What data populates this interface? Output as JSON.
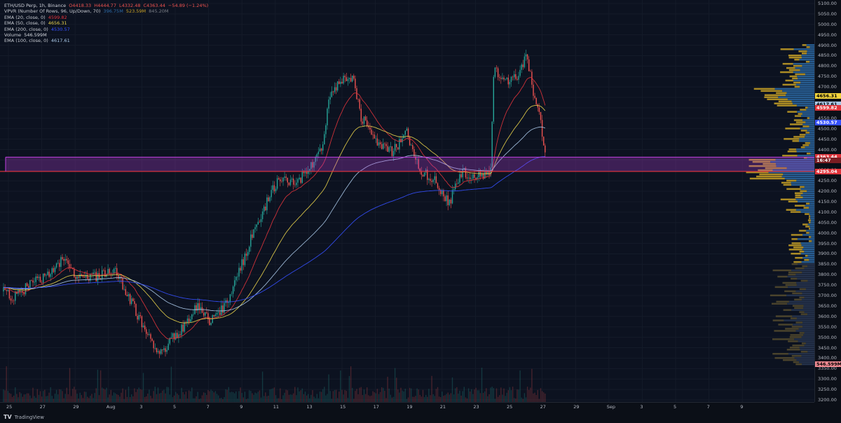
{
  "legend": {
    "symbol": "ETH/USD Perp, 1h, Binance",
    "ohlc": {
      "o": "O4418.33",
      "h": "H4444.77",
      "l": "L4332.48",
      "c": "C4363.44",
      "change": "−54.89 (−1.24%)"
    },
    "vpvr": {
      "label": "VPVR (Number Of Rows, 96, Up/Down, 70)",
      "v1": "396.75M",
      "v2": "523.59M",
      "v3": "845.20M"
    },
    "indicators": [
      {
        "label": "EMA (20, close, 0)",
        "value": "4599.82",
        "color": "#e0343b"
      },
      {
        "label": "EMA (50, close, 0)",
        "value": "4656.31",
        "color": "#e8d24a"
      },
      {
        "label": "EMA (200, close, 0)",
        "value": "4530.57",
        "color": "#3550ff"
      },
      {
        "label": "Volume",
        "value": "546.599M",
        "color": "#d2d5dc"
      },
      {
        "label": "EMA (100, close, 0)",
        "value": "4617.61",
        "color": "#8fb8d8"
      }
    ]
  },
  "price_axis": {
    "ticks": [
      "5100.00",
      "5050.00",
      "5000.00",
      "4950.00",
      "4900.00",
      "4850.00",
      "4800.00",
      "4750.00",
      "4700.00",
      "4650.00",
      "4600.00",
      "4550.00",
      "4500.00",
      "4450.00",
      "4400.00",
      "4350.00",
      "4300.00",
      "4250.00",
      "4200.00",
      "4150.00",
      "4100.00",
      "4050.00",
      "4000.00",
      "3950.00",
      "3900.00",
      "3850.00",
      "3800.00",
      "3750.00",
      "3700.00",
      "3650.00",
      "3600.00",
      "3550.00",
      "3500.00",
      "3450.00",
      "3400.00",
      "3350.00",
      "3300.00",
      "3250.00",
      "3200.00"
    ],
    "tags": [
      {
        "text": "4656.31",
        "price": 4656.31,
        "bg": "#f2d33c",
        "fg": "#000000"
      },
      {
        "text": "4617.61",
        "price": 4617.61,
        "bg": "#a8c7e6",
        "fg": "#000000"
      },
      {
        "text": "4599.82",
        "price": 4599.82,
        "bg": "#e0343b",
        "fg": "#ffffff"
      },
      {
        "text": "4530.57",
        "price": 4530.57,
        "bg": "#3550ff",
        "fg": "#ffffff"
      },
      {
        "text": "4363.44",
        "price": 4363.44,
        "bg": "#e0343b",
        "fg": "#ffffff"
      },
      {
        "text": "16:47",
        "price": 4348.0,
        "bg": "#7a1d22",
        "fg": "#ffffff"
      },
      {
        "text": "4295.04",
        "price": 4295.04,
        "bg": "#e0343b",
        "fg": "#ffffff"
      },
      {
        "text": "546.599M",
        "price": 3370,
        "bg": "#f08a92",
        "fg": "#000000"
      }
    ]
  },
  "time_axis": {
    "labels": [
      "25",
      "27",
      "29",
      "Aug",
      "3",
      "5",
      "7",
      "9",
      "11",
      "13",
      "15",
      "17",
      "19",
      "21",
      "23",
      "25",
      "27",
      "29",
      "Sep",
      "3",
      "5",
      "7",
      "9"
    ]
  },
  "zone": {
    "top": 4363.44,
    "bottom": 4295.04
  },
  "footer": {
    "brand": "TradingView"
  },
  "colors": {
    "up": "#26a69a",
    "down": "#ef5350",
    "ema20": "#e0343b",
    "ema50": "#e8d24a",
    "ema100": "#a8c7e6",
    "ema200": "#3550ff",
    "zone": "#c040e0",
    "vp_up": "#c9a227",
    "vp_down": "#2d6aa5"
  }
}
